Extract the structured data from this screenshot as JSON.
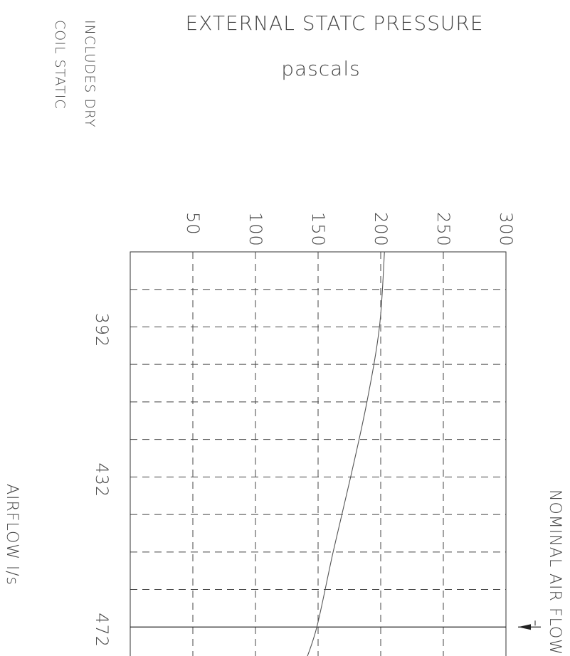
{
  "chart_data": {
    "type": "line",
    "title": "EXTERNAL STATC PRESSURE",
    "subtitle": "pascals",
    "note_lines": [
      "INCLUDES DRY",
      "COIL STATIC"
    ],
    "pressure_axis": {
      "label": "pascals",
      "ticks": [
        "50",
        "100",
        "150",
        "200",
        "250",
        "300"
      ],
      "tick_values": [
        50,
        100,
        150,
        200,
        250,
        300
      ],
      "range": [
        0,
        300
      ]
    },
    "airflow_axis": {
      "label": "AIRFLOW   l/s",
      "ticks": [
        "392",
        "432",
        "472"
      ],
      "tick_values": [
        392,
        432,
        472
      ],
      "range": [
        372,
        482
      ]
    },
    "nominal_airflow": {
      "label": "NOMINAL AIR FLOW",
      "value": 472
    },
    "grid": true,
    "series": [
      {
        "x": [
          372,
          392,
          412,
          432,
          452,
          472,
          482
        ],
        "y": [
          203,
          199,
          189,
          176,
          162,
          149,
          139
        ]
      }
    ]
  }
}
